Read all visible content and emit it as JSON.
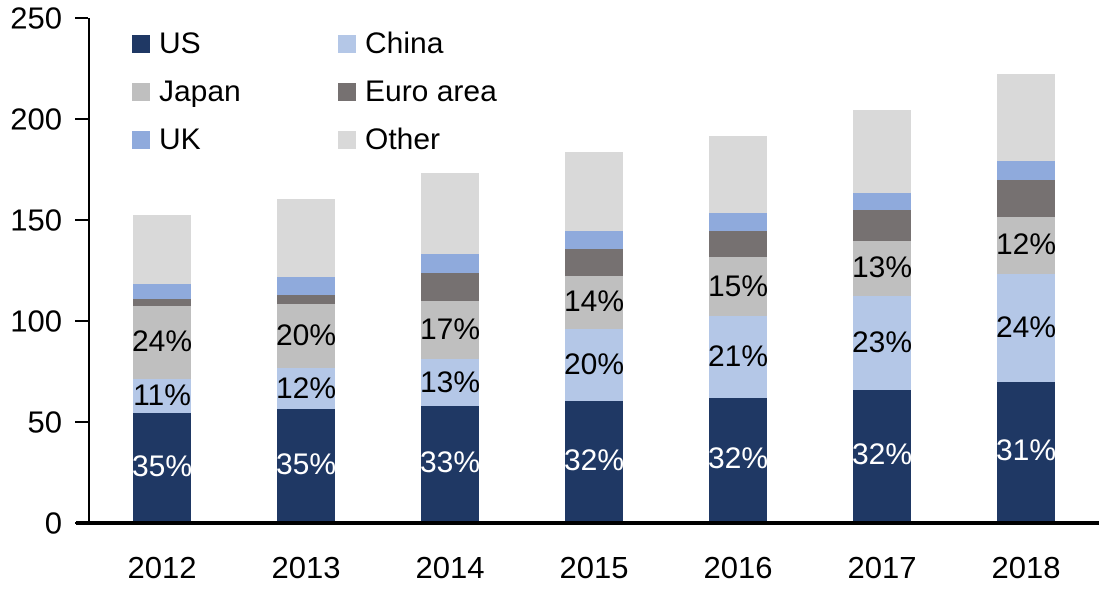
{
  "chart_data": {
    "type": "bar",
    "stacked": true,
    "title": "",
    "xlabel": "",
    "ylabel": "",
    "grid": false,
    "ylim": [
      0,
      250
    ],
    "yticks": [
      "0",
      "50",
      "100",
      "150",
      "200",
      "250"
    ],
    "ytick_values": [
      0,
      50,
      100,
      150,
      200,
      250
    ],
    "categories": [
      "2012",
      "2013",
      "2014",
      "2015",
      "2016",
      "2017",
      "2018"
    ],
    "series": [
      {
        "name": "US",
        "color": "#1f3864",
        "values": [
          53.5,
          55.5,
          57,
          59.5,
          61,
          65,
          69
        ],
        "labels": [
          "35%",
          "35%",
          "33%",
          "32%",
          "32%",
          "32%",
          "31%"
        ],
        "label_color": "#ffffff"
      },
      {
        "name": "China",
        "color": "#b4c7e7",
        "values": [
          17,
          20,
          23,
          35.5,
          40.5,
          46.5,
          53.5
        ],
        "labels": [
          "11%",
          "12%",
          "13%",
          "20%",
          "21%",
          "23%",
          "24%"
        ],
        "label_color": "#000000"
      },
      {
        "name": "Japan",
        "color": "#bfbfbf",
        "values": [
          36,
          32,
          29,
          26.5,
          29,
          27,
          28
        ],
        "labels": [
          "24%",
          "20%",
          "17%",
          "14%",
          "15%",
          "13%",
          "12%"
        ],
        "label_color": "#000000"
      },
      {
        "name": "Euro area",
        "color": "#767171",
        "values": [
          3.5,
          4.5,
          14,
          13,
          13,
          15.5,
          18.5
        ],
        "labels": null,
        "label_color": null
      },
      {
        "name": "UK",
        "color": "#8faadc",
        "values": [
          7.5,
          9,
          9,
          9,
          9,
          8.5,
          9
        ],
        "labels": null,
        "label_color": null
      },
      {
        "name": "Other",
        "color": "#d9d9d9",
        "values": [
          34,
          38.5,
          40.5,
          39,
          38,
          41,
          43.5
        ],
        "labels": null,
        "label_color": null
      }
    ],
    "totals": [
      151.5,
      159.5,
      172.5,
      182.5,
      190.5,
      203.5,
      221.5
    ],
    "legend_position": "inside-top-left",
    "legend_rows": [
      [
        "US",
        "China"
      ],
      [
        "Japan",
        "Euro area"
      ],
      [
        "UK",
        "Other"
      ]
    ],
    "axis_color": "#000000",
    "background_color": "#ffffff"
  }
}
